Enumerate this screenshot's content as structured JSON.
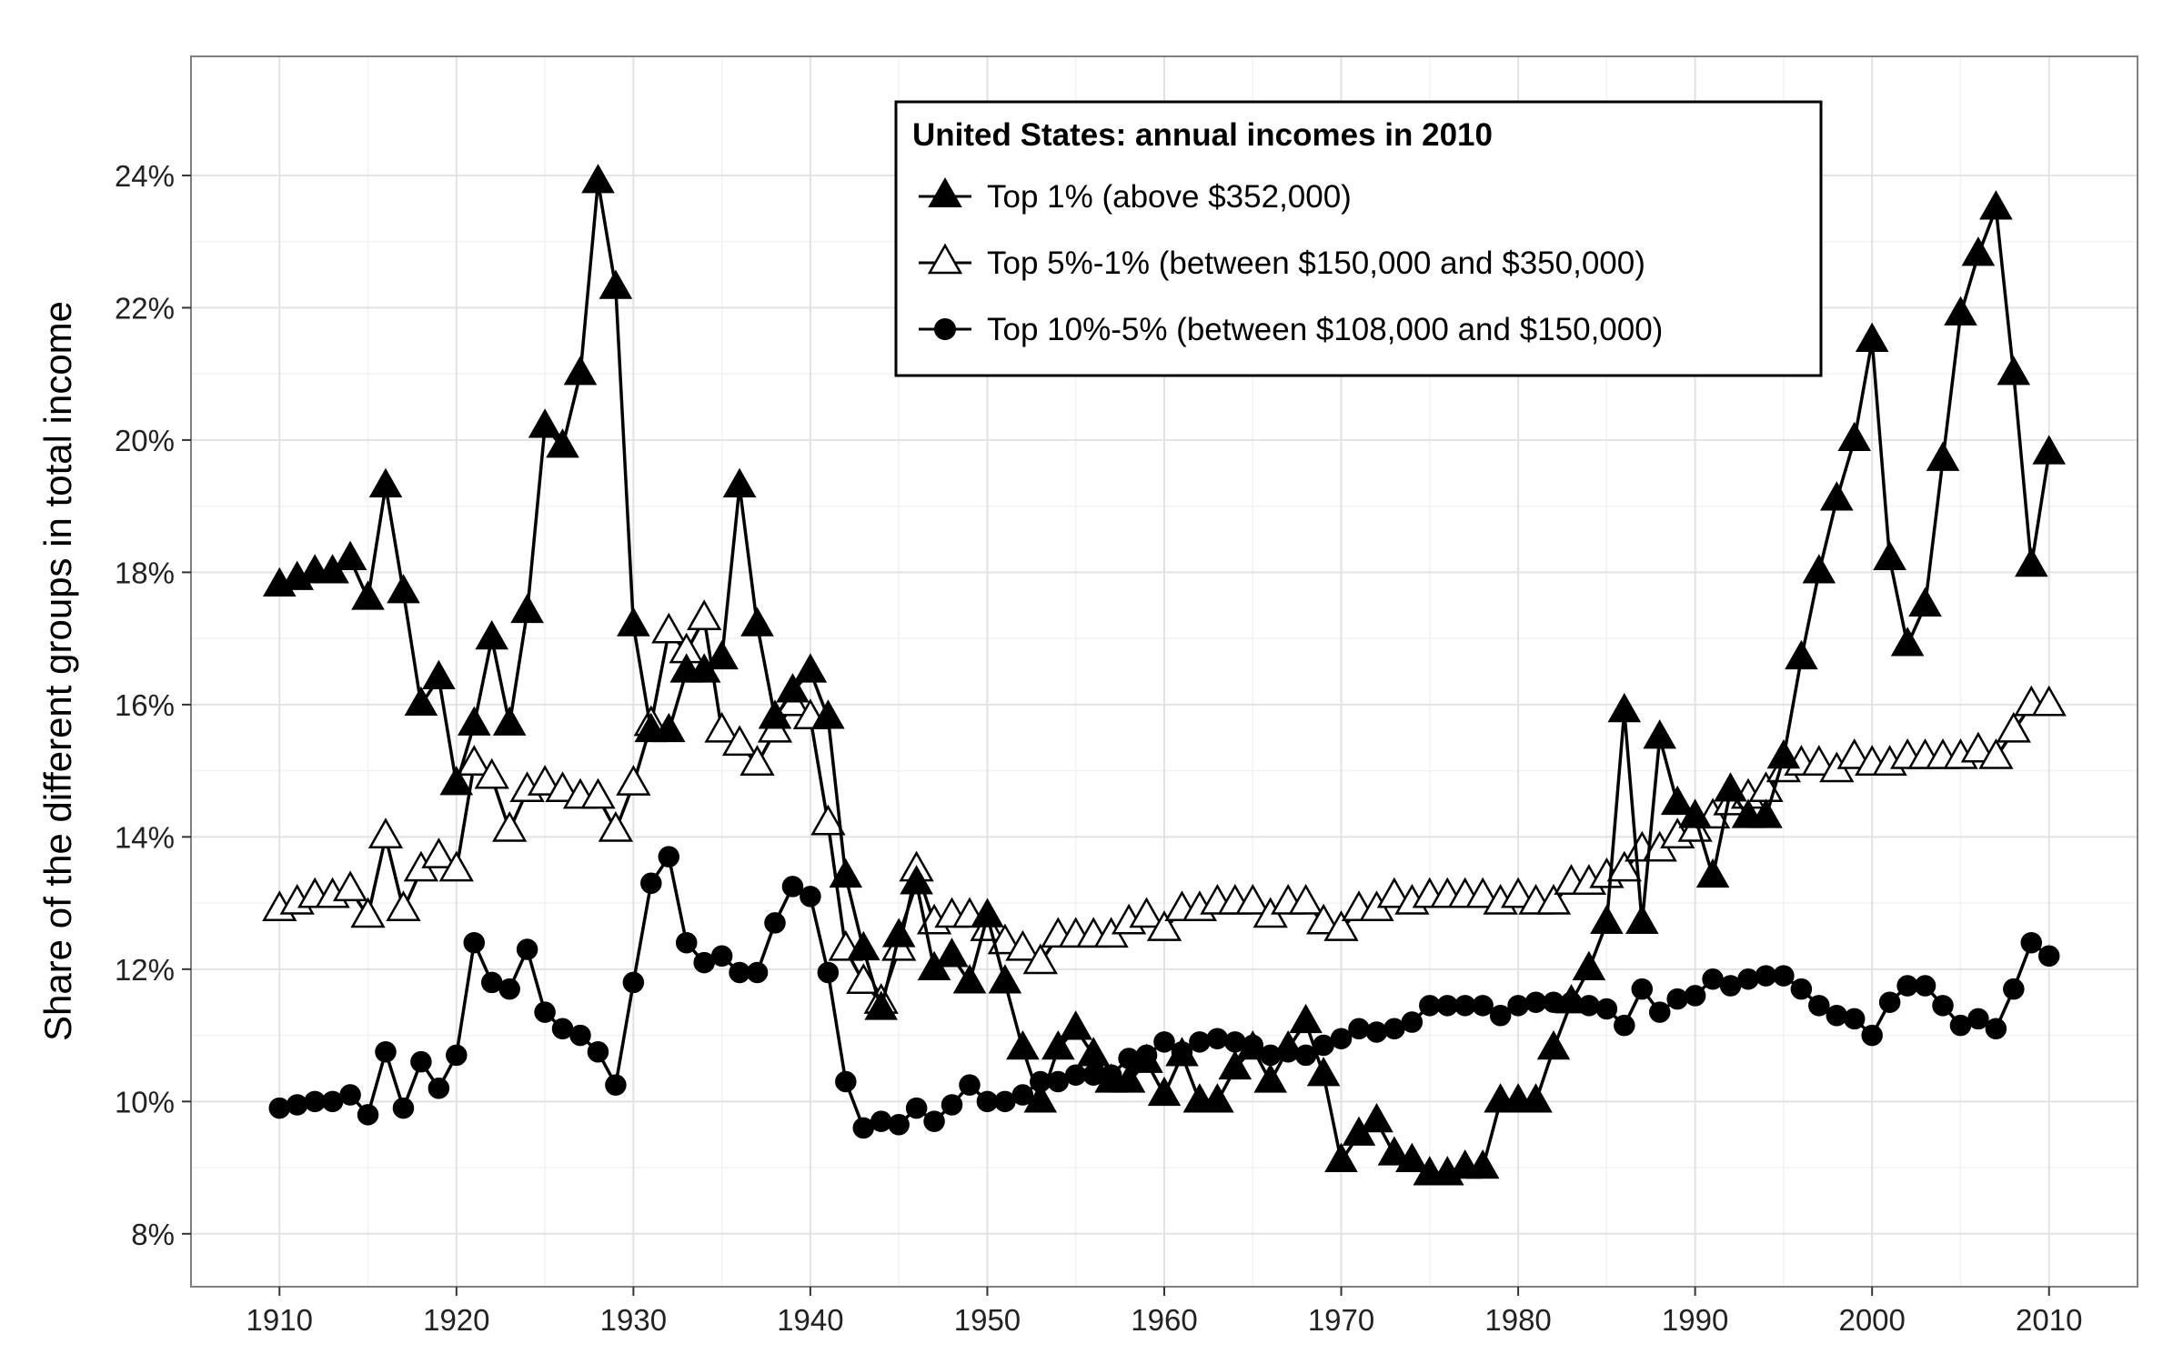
{
  "chart_data": {
    "type": "line",
    "title": "",
    "xlabel": "",
    "ylabel": "Share of the different groups in total income",
    "xlim": [
      1905,
      2015
    ],
    "ylim": [
      7.2,
      25.8
    ],
    "x_ticks": [
      1910,
      1920,
      1930,
      1940,
      1950,
      1960,
      1970,
      1980,
      1990,
      2000,
      2010
    ],
    "y_ticks": [
      8,
      10,
      12,
      14,
      16,
      18,
      20,
      22,
      24
    ],
    "y_tick_labels": [
      "8%",
      "10%",
      "12%",
      "14%",
      "16%",
      "18%",
      "20%",
      "22%",
      "24%"
    ],
    "grid": true,
    "legend": {
      "title": "United States: annual incomes in 2010",
      "position": "top-center"
    },
    "x": [
      1910,
      1911,
      1912,
      1913,
      1914,
      1915,
      1916,
      1917,
      1918,
      1919,
      1920,
      1921,
      1922,
      1923,
      1924,
      1925,
      1926,
      1927,
      1928,
      1929,
      1930,
      1931,
      1932,
      1933,
      1934,
      1935,
      1936,
      1937,
      1938,
      1939,
      1940,
      1941,
      1942,
      1943,
      1944,
      1945,
      1946,
      1947,
      1948,
      1949,
      1950,
      1951,
      1952,
      1953,
      1954,
      1955,
      1956,
      1957,
      1958,
      1959,
      1960,
      1961,
      1962,
      1963,
      1964,
      1965,
      1966,
      1967,
      1968,
      1969,
      1970,
      1971,
      1972,
      1973,
      1974,
      1975,
      1976,
      1977,
      1978,
      1979,
      1980,
      1981,
      1982,
      1983,
      1984,
      1985,
      1986,
      1987,
      1988,
      1989,
      1990,
      1991,
      1992,
      1993,
      1994,
      1995,
      1996,
      1997,
      1998,
      1999,
      2000,
      2001,
      2002,
      2003,
      2004,
      2005,
      2006,
      2007,
      2008,
      2009,
      2010
    ],
    "series": [
      {
        "name": "Top 1% (above $352,000)",
        "marker": "filled-triangle",
        "values": [
          17.8,
          17.9,
          18.0,
          18.0,
          18.2,
          17.6,
          19.3,
          17.7,
          16.0,
          16.4,
          14.8,
          15.7,
          17.0,
          15.7,
          17.4,
          20.2,
          19.9,
          21.0,
          23.9,
          22.3,
          17.2,
          15.6,
          15.6,
          16.5,
          16.5,
          16.7,
          19.3,
          17.2,
          15.8,
          16.2,
          16.5,
          15.8,
          13.4,
          12.3,
          11.4,
          12.5,
          13.3,
          12.0,
          12.2,
          11.8,
          12.8,
          11.8,
          10.8,
          10.0,
          10.8,
          11.1,
          10.7,
          10.3,
          10.3,
          10.6,
          10.1,
          10.7,
          10.0,
          10.0,
          10.5,
          10.8,
          10.3,
          10.8,
          11.2,
          10.4,
          9.1,
          9.5,
          9.7,
          9.2,
          9.1,
          8.9,
          8.9,
          9.0,
          9.0,
          10.0,
          10.0,
          10.0,
          10.8,
          11.5,
          12.0,
          12.7,
          15.9,
          12.7,
          15.5,
          14.5,
          14.3,
          13.4,
          14.7,
          14.3,
          14.3,
          15.2,
          16.7,
          18.0,
          19.1,
          20.0,
          21.5,
          18.2,
          16.9,
          17.5,
          19.7,
          21.9,
          22.8,
          23.5,
          21.0,
          18.1,
          19.8
        ]
      },
      {
        "name": "Top 5%-1% (between $150,000 and $350,000)",
        "marker": "open-triangle",
        "values": [
          12.9,
          13.0,
          13.1,
          13.1,
          13.2,
          12.8,
          14.0,
          12.9,
          13.5,
          13.7,
          13.5,
          15.1,
          14.9,
          14.1,
          14.7,
          14.8,
          14.7,
          14.6,
          14.6,
          14.1,
          14.8,
          15.7,
          17.1,
          16.8,
          17.3,
          15.6,
          15.4,
          15.1,
          15.6,
          16.0,
          15.8,
          14.2,
          12.3,
          11.8,
          11.5,
          12.3,
          13.5,
          12.7,
          12.8,
          12.8,
          12.6,
          12.4,
          12.3,
          12.1,
          12.5,
          12.5,
          12.5,
          12.5,
          12.7,
          12.8,
          12.6,
          12.9,
          12.9,
          13.0,
          13.0,
          13.0,
          12.8,
          13.0,
          13.0,
          12.7,
          12.6,
          12.9,
          12.9,
          13.1,
          13.0,
          13.1,
          13.1,
          13.1,
          13.1,
          13.0,
          13.1,
          13.0,
          13.0,
          13.3,
          13.3,
          13.4,
          13.5,
          13.8,
          13.8,
          14.0,
          14.1,
          14.3,
          14.5,
          14.6,
          14.7,
          15.0,
          15.1,
          15.1,
          15.0,
          15.2,
          15.1,
          15.1,
          15.2,
          15.2,
          15.2,
          15.2,
          15.3,
          15.2,
          15.6,
          16.0,
          16.0
        ]
      },
      {
        "name": "Top 10%-5% (between $108,000 and $150,000)",
        "marker": "filled-circle",
        "values": [
          9.9,
          9.95,
          10.0,
          10.0,
          10.1,
          9.8,
          10.75,
          9.9,
          10.6,
          10.2,
          10.7,
          12.4,
          11.8,
          11.7,
          12.3,
          11.35,
          11.1,
          11.0,
          10.75,
          10.25,
          11.8,
          13.3,
          13.7,
          12.4,
          12.1,
          12.2,
          11.95,
          11.95,
          12.7,
          13.25,
          13.1,
          11.95,
          10.3,
          9.6,
          9.7,
          9.65,
          9.9,
          9.7,
          9.95,
          10.25,
          10.0,
          10.0,
          10.1,
          10.3,
          10.3,
          10.4,
          10.4,
          10.4,
          10.65,
          10.7,
          10.9,
          10.75,
          10.9,
          10.95,
          10.9,
          10.85,
          10.7,
          10.75,
          10.7,
          10.85,
          10.95,
          11.1,
          11.05,
          11.1,
          11.2,
          11.45,
          11.45,
          11.45,
          11.45,
          11.3,
          11.45,
          11.5,
          11.5,
          11.5,
          11.45,
          11.4,
          11.15,
          11.7,
          11.35,
          11.55,
          11.6,
          11.85,
          11.75,
          11.85,
          11.9,
          11.9,
          11.7,
          11.45,
          11.3,
          11.25,
          11.0,
          11.5,
          11.75,
          11.75,
          11.45,
          11.15,
          11.25,
          11.1,
          11.7,
          12.4,
          12.2
        ]
      }
    ]
  }
}
